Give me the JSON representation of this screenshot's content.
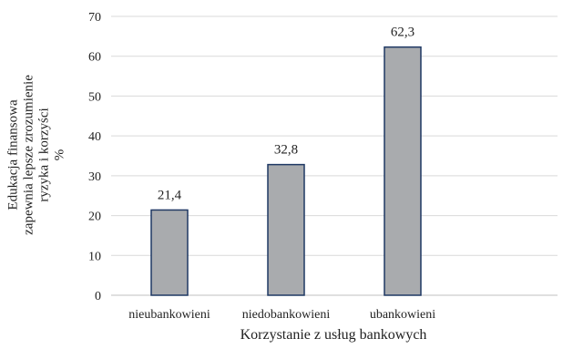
{
  "chart_data": {
    "type": "bar",
    "categories": [
      "nieubankowieni",
      "niedobankowieni",
      "ubankowieni"
    ],
    "values": [
      21.4,
      32.8,
      62.3
    ],
    "value_labels": [
      "21,4",
      "32,8",
      "62,3"
    ],
    "xlabel": "Korzystanie z usług bankowych",
    "ylabel_lines": [
      "Edukacja finansowa",
      "zapewnia lepsze zrozumienie",
      "ryzyka i korzyści",
      "%"
    ],
    "ylim": [
      0,
      70
    ],
    "yticks": [
      "0",
      "10",
      "20",
      "30",
      "40",
      "50",
      "60",
      "70"
    ],
    "grid": true,
    "legend": "none",
    "colors": {
      "bar_fill": "#a9abae",
      "bar_stroke": "#1f3864",
      "grid": "#d9d9d9"
    }
  }
}
